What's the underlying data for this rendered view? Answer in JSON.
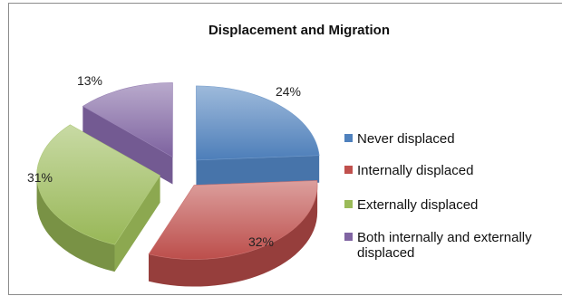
{
  "chart_data": {
    "type": "pie",
    "title": "Displacement and Migration",
    "categories": [
      "Never displaced",
      "Internally displaced",
      "Externally displaced",
      "Both internally and externally displaced"
    ],
    "legend_lines": [
      [
        "Never displaced"
      ],
      [
        "Internally displaced"
      ],
      [
        "Externally displaced"
      ],
      [
        "Both internally and externally",
        "displaced"
      ]
    ],
    "values": [
      24,
      32,
      31,
      13
    ],
    "labels": [
      "24%",
      "32%",
      "31%",
      "13%"
    ],
    "exploded": true,
    "three_d": true,
    "legend_position": "right",
    "colors": [
      "#4f81bd",
      "#c0504d",
      "#9bbb59",
      "#8064a2"
    ]
  }
}
